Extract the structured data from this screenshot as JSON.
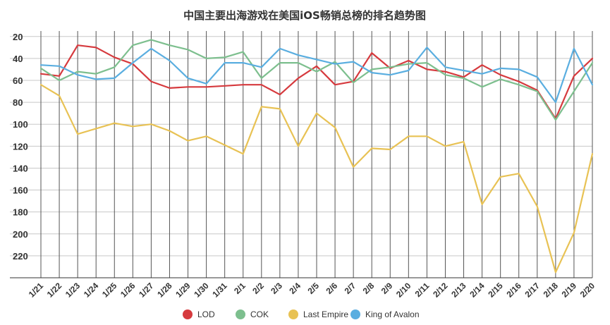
{
  "chart_data": {
    "type": "line",
    "title": "中国主要出海游戏在美国iOS畅销总榜的排名趋势图",
    "categories": [
      "1/21",
      "1/22",
      "1/23",
      "1/24",
      "1/25",
      "1/26",
      "1/27",
      "1/28",
      "1/29",
      "1/30",
      "1/31",
      "2/1",
      "2/2",
      "2/3",
      "2/4",
      "2/5",
      "2/6",
      "2/7",
      "2/8",
      "2/9",
      "2/10",
      "2/11",
      "2/12",
      "2/13",
      "2/14",
      "2/15",
      "2/16",
      "2/17",
      "2/18",
      "2/19",
      "2/20"
    ],
    "y_ticks": [
      20,
      40,
      60,
      80,
      100,
      120,
      140,
      160,
      180,
      200,
      220
    ],
    "ylim": [
      15,
      240
    ],
    "y_inverted": true,
    "grid": true,
    "legend_position": "bottom",
    "series": [
      {
        "name": "LOD",
        "color": "#d63a3e",
        "values": [
          54,
          56,
          28,
          30,
          39,
          45,
          61,
          67,
          66,
          66,
          65,
          64,
          64,
          73,
          58,
          47,
          64,
          61,
          35,
          49,
          42,
          50,
          52,
          57,
          46,
          55,
          61,
          69,
          95,
          56,
          40
        ]
      },
      {
        "name": "COK",
        "color": "#7dbf8e",
        "values": [
          49,
          60,
          52,
          54,
          48,
          28,
          23,
          28,
          32,
          40,
          39,
          34,
          58,
          44,
          44,
          52,
          43,
          62,
          50,
          48,
          45,
          44,
          55,
          58,
          66,
          59,
          64,
          70,
          96,
          70,
          44
        ]
      },
      {
        "name": "Last Empire",
        "color": "#e8c254",
        "values": [
          64,
          74,
          109,
          104,
          99,
          102,
          100,
          106,
          115,
          111,
          119,
          127,
          84,
          86,
          120,
          90,
          103,
          139,
          122,
          123,
          111,
          111,
          120,
          116,
          173,
          148,
          145,
          175,
          235,
          199,
          127
        ]
      },
      {
        "name": "King of Avalon",
        "color": "#5aaee0",
        "values": [
          46,
          47,
          55,
          59,
          58,
          44,
          31,
          42,
          58,
          63,
          44,
          44,
          48,
          31,
          37,
          41,
          45,
          43,
          53,
          55,
          51,
          30,
          48,
          51,
          54,
          49,
          50,
          57,
          80,
          31,
          64
        ]
      }
    ]
  }
}
